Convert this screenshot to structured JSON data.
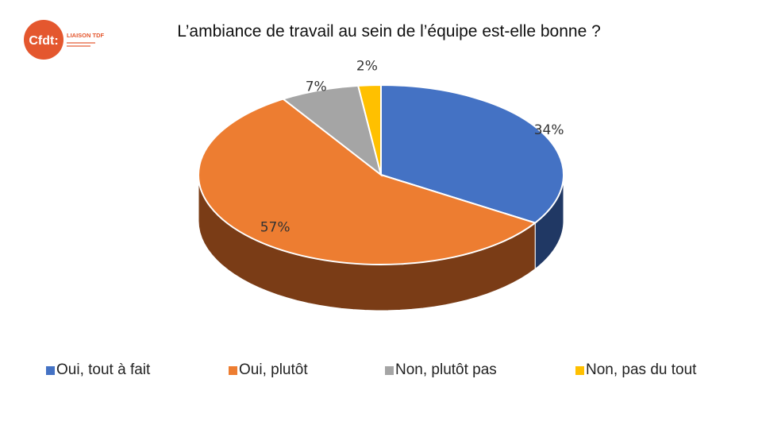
{
  "brand": {
    "logo_text": "Cfdt:",
    "logo_subtitle": "LIAISON TDF",
    "logo_color": "#e4572e",
    "subtitle_color": "#e4572e"
  },
  "chart_data": {
    "type": "pie",
    "style": "3d",
    "title": "L’ambiance de travail au sein de l’équipe est-elle bonne ?",
    "legend_position": "bottom",
    "slices": [
      {
        "name": "Oui, tout à fait",
        "value": 34,
        "label": "34%",
        "color": "#4472c4",
        "side_color": "#203864"
      },
      {
        "name": "Oui, plutôt",
        "value": 57,
        "label": "57%",
        "color": "#ed7d31",
        "side_color": "#7a3c16"
      },
      {
        "name": "Non, plutôt pas",
        "value": 7,
        "label": "7%",
        "color": "#a5a5a5",
        "side_color": "#595959"
      },
      {
        "name": "Non, pas du tout",
        "value": 2,
        "label": "2%",
        "color": "#ffc000",
        "side_color": "#8a6a00"
      }
    ]
  }
}
